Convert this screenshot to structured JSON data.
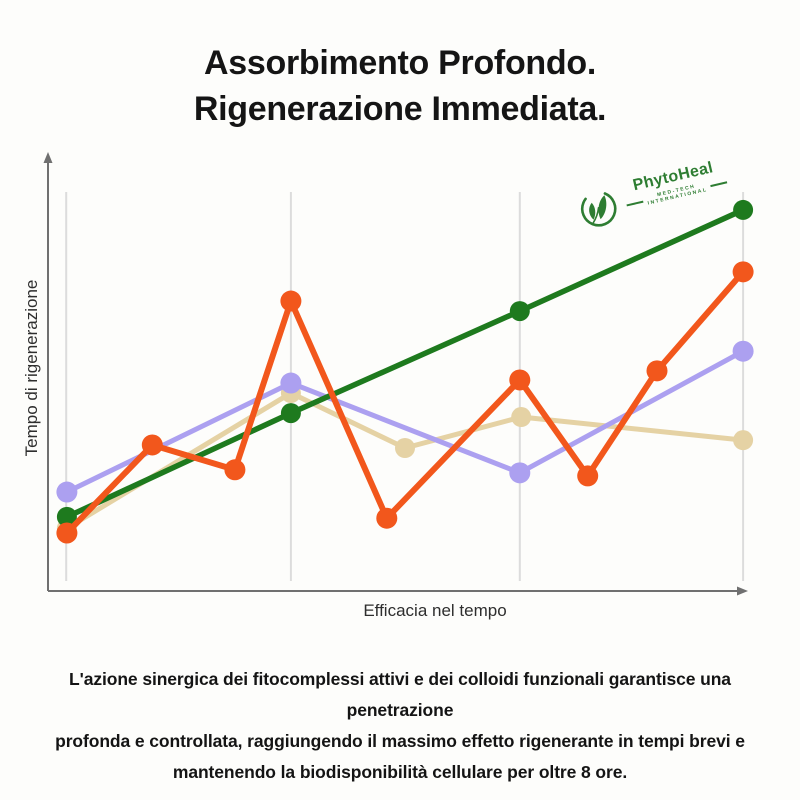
{
  "title": {
    "line1": "Assorbimento Profondo.",
    "line2": "Rigenerazione Immediata."
  },
  "logo": {
    "name": "PhytoHeal",
    "tagline_top": "MED-TECH",
    "tagline_bottom": "INTERNATIONAL",
    "color": "#2e7d32"
  },
  "chart_data": {
    "type": "line",
    "title": "",
    "xlabel": "Efficacia nel tempo",
    "ylabel": "Tempo di rigenerazione",
    "axes_numeric": false,
    "grid": "vertical-only",
    "legend_position": "none",
    "xlim": [
      0,
      100
    ],
    "ylim": [
      0,
      100
    ],
    "axis_color": "#707070",
    "grid_color": "#dcdcdc",
    "gridlines_x_pct": [
      2.6,
      34.7,
      67.4,
      99.3
    ],
    "series": [
      {
        "name": "colloidi-beige",
        "color": "#e5d2a4",
        "line_width": 5,
        "marker_radius": 10,
        "points": [
          [
            2.7,
            14.4
          ],
          [
            34.7,
            45.4
          ],
          [
            51.0,
            32.8
          ],
          [
            67.6,
            39.9
          ],
          [
            99.3,
            34.6
          ]
        ]
      },
      {
        "name": "fitocomplessi-lavanda",
        "color": "#aca0f0",
        "line_width": 5,
        "marker_radius": 10.5,
        "points": [
          [
            2.7,
            22.7
          ],
          [
            34.7,
            47.7
          ],
          [
            67.4,
            27.1
          ],
          [
            99.3,
            55.0
          ]
        ]
      },
      {
        "name": "phytoheal-verde",
        "color": "#1e7a1e",
        "line_width": 5.5,
        "marker_radius": 10,
        "points": [
          [
            2.7,
            17.0
          ],
          [
            34.7,
            40.8
          ],
          [
            67.4,
            64.2
          ],
          [
            99.3,
            87.4
          ]
        ]
      },
      {
        "name": "trattamento-arancio",
        "color": "#f2571c",
        "line_width": 6,
        "marker_radius": 10.5,
        "points": [
          [
            2.7,
            13.3
          ],
          [
            14.9,
            33.5
          ],
          [
            26.7,
            27.8
          ],
          [
            34.7,
            66.5
          ],
          [
            48.4,
            16.7
          ],
          [
            67.4,
            48.4
          ],
          [
            77.1,
            26.4
          ],
          [
            87.0,
            50.5
          ],
          [
            99.3,
            73.2
          ]
        ]
      }
    ]
  },
  "description": {
    "lines": [
      "L'azione sinergica dei fitocomplessi attivi e dei colloidi funzionali garantisce una penetrazione",
      "profonda e controllata, raggiungendo il massimo effetto rigenerante in tempi brevi e",
      "mantenendo la biodisponibilità cellulare per oltre 8 ore."
    ]
  }
}
